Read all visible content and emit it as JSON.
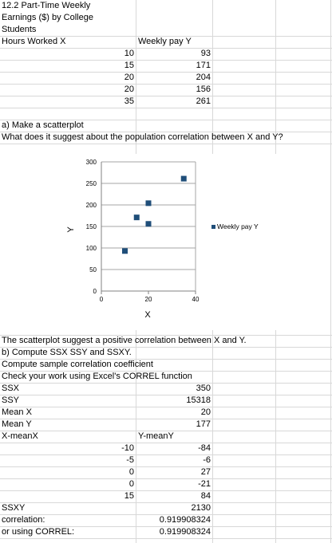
{
  "title_lines": [
    "12.2 Part-Time Weekly",
    "Earnings ($) by College",
    "Students"
  ],
  "headers": {
    "x": "Hours Worked X",
    "y": "Weekly pay Y"
  },
  "data_rows": [
    {
      "x": "10",
      "y": "93"
    },
    {
      "x": "15",
      "y": "171"
    },
    {
      "x": "20",
      "y": "204"
    },
    {
      "x": "20",
      "y": "156"
    },
    {
      "x": "35",
      "y": "261"
    }
  ],
  "question_a": "a) Make a scatterplot",
  "question_a2": "What does it suggest about the population correlation between X and Y?",
  "chart_data": {
    "type": "scatter",
    "x": [
      10,
      15,
      20,
      20,
      35
    ],
    "y": [
      93,
      171,
      204,
      156,
      261
    ],
    "series": [
      {
        "name": "Weekly pay Y",
        "color": "#1f4e79"
      }
    ],
    "xlabel": "X",
    "ylabel": "Y",
    "xlim": [
      0,
      40
    ],
    "ylim": [
      0,
      300
    ],
    "xticks": [
      "0",
      "20",
      "40"
    ],
    "yticks": [
      "0",
      "50",
      "100",
      "150",
      "200",
      "250",
      "300"
    ],
    "grid": true,
    "legend": "right"
  },
  "answer_a": "The scatterplot suggest a positive correlation between X and Y.",
  "question_b": "b) Compute SSX SSY and SSXY.",
  "compute_line": "Compute sample correlation coefficient",
  "check_line": "Check your work using Excel's CORREL function",
  "stats": [
    {
      "label": "SSX",
      "value": "350"
    },
    {
      "label": "SSY",
      "value": "15318"
    },
    {
      "label": "Mean X",
      "value": "20"
    },
    {
      "label": "Mean Y",
      "value": "177"
    }
  ],
  "dev_headers": {
    "x": "X-meanX",
    "y": "Y-meanY"
  },
  "dev_rows": [
    {
      "x": "-10",
      "y": "-84"
    },
    {
      "x": "-5",
      "y": "-6"
    },
    {
      "x": "0",
      "y": "27"
    },
    {
      "x": "0",
      "y": "-21"
    },
    {
      "x": "15",
      "y": "84"
    }
  ],
  "ssxy": {
    "label": "SSXY",
    "value": "2130"
  },
  "correlation": {
    "label": "correlation:",
    "value": "0.919908324"
  },
  "correl": {
    "label": "or using CORREL:",
    "value": "0.919908324"
  }
}
